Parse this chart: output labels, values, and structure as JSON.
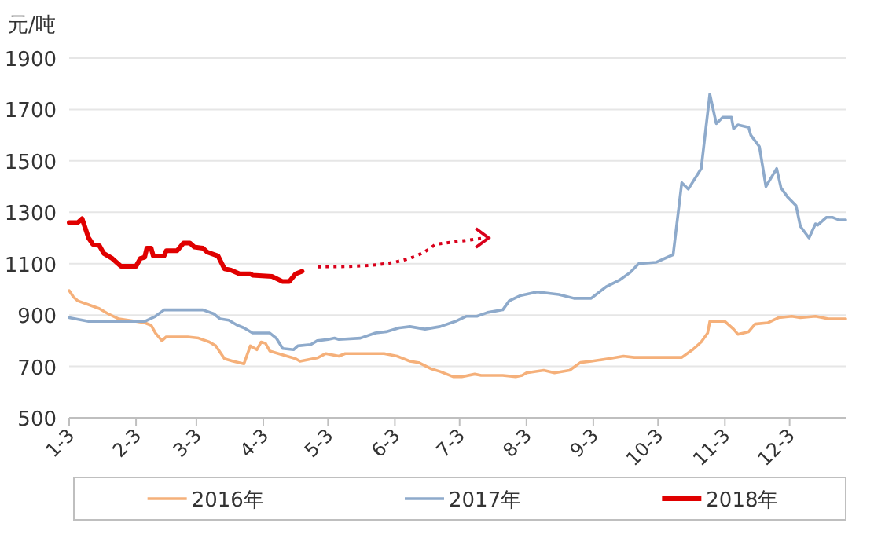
{
  "chart_data": {
    "type": "line",
    "ylabel": "元/吨",
    "ylim": [
      500,
      1900
    ],
    "yticks": [
      500,
      700,
      900,
      1100,
      1300,
      1500,
      1700,
      1900
    ],
    "xlim": [
      "--01-03",
      "--12-29"
    ],
    "xticks": [
      {
        "value": "--01-03",
        "label": "1-3"
      },
      {
        "value": "--02-03",
        "label": "2-3"
      },
      {
        "value": "--03-03",
        "label": "3-3"
      },
      {
        "value": "--04-03",
        "label": "4-3"
      },
      {
        "value": "--05-03",
        "label": "5-3"
      },
      {
        "value": "--06-03",
        "label": "6-3"
      },
      {
        "value": "--07-03",
        "label": "7-3"
      },
      {
        "value": "--08-03",
        "label": "8-3"
      },
      {
        "value": "--09-03",
        "label": "9-3"
      },
      {
        "value": "--10-03",
        "label": "10-3"
      },
      {
        "value": "--11-03",
        "label": "11-3"
      },
      {
        "value": "--12-03",
        "label": "12-3"
      }
    ],
    "grid": "y",
    "legend": "bottom",
    "marker": "none",
    "line_style": "solid",
    "series": [
      {
        "name": "2016年",
        "color": "#f5b07a",
        "x": [
          "--01-03",
          "--01-05",
          "--01-07",
          "--01-12",
          "--01-17",
          "--01-21",
          "--01-26",
          "--02-03",
          "--02-07",
          "--02-10",
          "--02-12",
          "--02-15",
          "--02-17",
          "--02-27",
          "--03-04",
          "--03-09",
          "--03-12",
          "--03-16",
          "--03-20",
          "--03-25",
          "--03-28",
          "--03-31",
          "--04-02",
          "--04-04",
          "--04-06",
          "--04-10",
          "--04-14",
          "--04-18",
          "--04-20",
          "--04-26",
          "--04-28",
          "--05-02",
          "--05-08",
          "--05-11",
          "--05-29",
          "--06-04",
          "--06-10",
          "--06-14",
          "--06-20",
          "--06-24",
          "--06-30",
          "--07-04",
          "--07-10",
          "--07-13",
          "--07-23",
          "--07-29",
          "--08-01",
          "--08-03",
          "--08-11",
          "--08-16",
          "--08-23",
          "--08-28",
          "--09-02",
          "--09-10",
          "--09-17",
          "--09-22",
          "--10-02",
          "--10-14",
          "--10-19",
          "--10-23",
          "--10-26",
          "--10-27",
          "--11-03",
          "--11-07",
          "--11-09",
          "--11-14",
          "--11-17",
          "--11-23",
          "--11-28",
          "--12-04",
          "--12-08",
          "--12-15",
          "--12-21",
          "--12-29"
        ],
        "values": [
          995,
          970,
          955,
          940,
          925,
          905,
          885,
          875,
          870,
          860,
          830,
          800,
          815,
          815,
          810,
          795,
          780,
          730,
          720,
          710,
          780,
          765,
          795,
          790,
          760,
          750,
          740,
          730,
          720,
          730,
          733,
          750,
          740,
          750,
          750,
          740,
          720,
          715,
          690,
          680,
          660,
          660,
          670,
          665,
          665,
          660,
          665,
          675,
          685,
          675,
          685,
          715,
          720,
          730,
          740,
          735,
          735,
          735,
          765,
          795,
          830,
          875,
          875,
          845,
          825,
          835,
          865,
          870,
          890,
          895,
          890,
          895,
          885,
          885
        ]
      },
      {
        "name": "2017年",
        "color": "#8eaacb",
        "x": [
          "--01-03",
          "--01-12",
          "--02-03",
          "--02-07",
          "--02-12",
          "--02-16",
          "--03-06",
          "--03-11",
          "--03-14",
          "--03-18",
          "--03-22",
          "--03-25",
          "--03-29",
          "--04-06",
          "--04-09",
          "--04-12",
          "--04-17",
          "--04-19",
          "--04-25",
          "--04-28",
          "--05-03",
          "--05-06",
          "--05-08",
          "--05-18",
          "--05-25",
          "--05-30",
          "--06-05",
          "--06-10",
          "--06-17",
          "--06-24",
          "--07-01",
          "--07-06",
          "--07-11",
          "--07-16",
          "--07-23",
          "--07-26",
          "--07-31",
          "--08-08",
          "--08-18",
          "--08-25",
          "--09-02",
          "--09-09",
          "--09-15",
          "--09-20",
          "--09-24",
          "--10-02",
          "--10-10",
          "--10-14",
          "--10-17",
          "--10-23",
          "--10-27",
          "--10-30",
          "--11-02",
          "--11-06",
          "--11-07",
          "--11-09",
          "--11-14",
          "--11-15",
          "--11-19",
          "--11-22",
          "--11-27",
          "--11-29",
          "--12-02",
          "--12-06",
          "--12-08",
          "--12-12",
          "--12-15",
          "--12-16",
          "--12-20",
          "--12-23",
          "--12-26",
          "--12-29"
        ],
        "values": [
          890,
          875,
          875,
          875,
          895,
          920,
          920,
          905,
          885,
          880,
          860,
          850,
          830,
          830,
          810,
          770,
          765,
          780,
          785,
          800,
          805,
          810,
          805,
          810,
          830,
          835,
          850,
          855,
          845,
          855,
          875,
          895,
          895,
          910,
          920,
          955,
          975,
          990,
          980,
          965,
          965,
          1010,
          1035,
          1065,
          1100,
          1105,
          1135,
          1415,
          1390,
          1470,
          1760,
          1645,
          1670,
          1670,
          1625,
          1640,
          1630,
          1600,
          1555,
          1400,
          1470,
          1395,
          1360,
          1325,
          1245,
          1200,
          1255,
          1250,
          1280,
          1280,
          1270,
          1270
        ]
      },
      {
        "name": "2018年",
        "color": "#e00000",
        "x": [
          "--01-03",
          "--01-07",
          "--01-09",
          "--01-12",
          "--01-14",
          "--01-17",
          "--01-19",
          "--01-23",
          "--01-27",
          "--02-03",
          "--02-05",
          "--02-07",
          "--02-08",
          "--02-10",
          "--02-11",
          "--02-16",
          "--02-17",
          "--02-22",
          "--02-25",
          "--02-28",
          "--03-02",
          "--03-06",
          "--03-08",
          "--03-13",
          "--03-16",
          "--03-19",
          "--03-23",
          "--03-28",
          "--03-29",
          "--04-07",
          "--04-12",
          "--04-15",
          "--04-18",
          "--04-21"
        ],
        "values": [
          1260,
          1260,
          1275,
          1200,
          1175,
          1170,
          1140,
          1120,
          1090,
          1090,
          1120,
          1125,
          1160,
          1160,
          1130,
          1130,
          1150,
          1150,
          1180,
          1180,
          1165,
          1160,
          1145,
          1130,
          1080,
          1075,
          1060,
          1060,
          1055,
          1050,
          1030,
          1030,
          1060,
          1070
        ]
      }
    ]
  }
}
